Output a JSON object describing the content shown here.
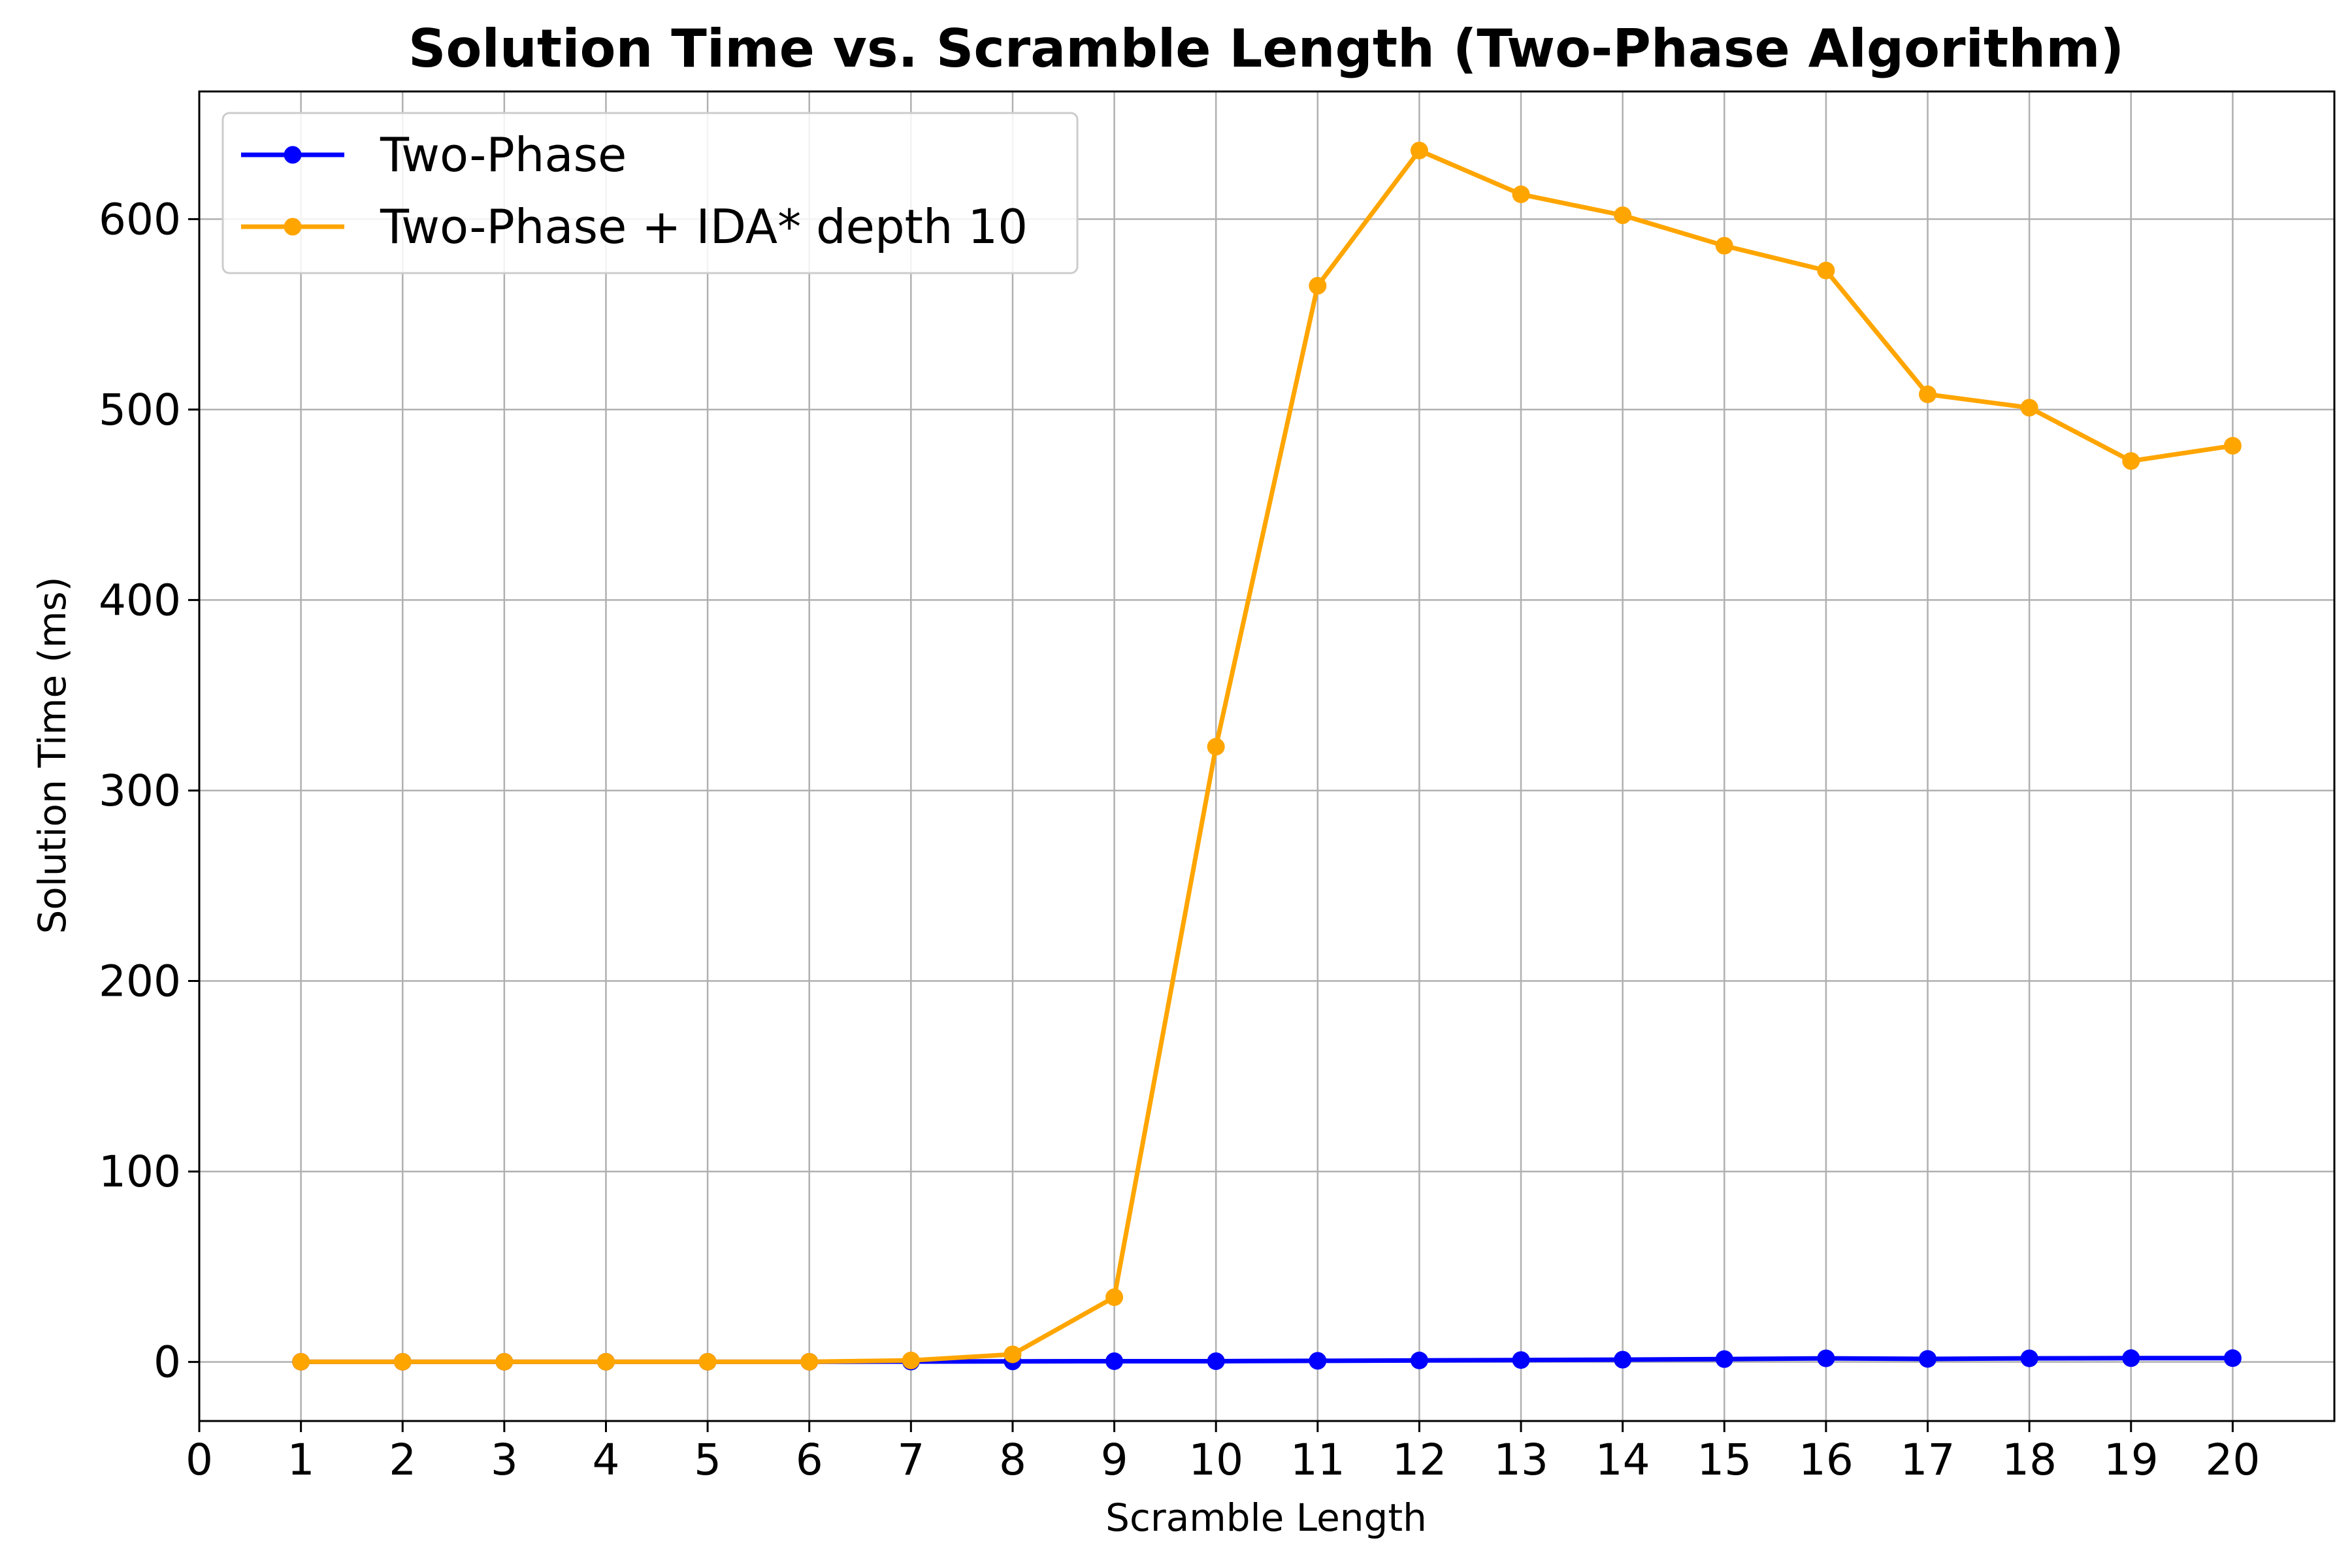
{
  "chart_data": {
    "type": "line",
    "title": "Solution Time vs. Scramble Length (Two-Phase Algorithm)",
    "xlabel": "Scramble Length",
    "ylabel": "Solution Time (ms)",
    "xlim": [
      0,
      21
    ],
    "ylim": [
      -31,
      667
    ],
    "xticks": [
      "0",
      "1",
      "2",
      "3",
      "4",
      "5",
      "6",
      "7",
      "8",
      "9",
      "10",
      "11",
      "12",
      "13",
      "14",
      "15",
      "16",
      "17",
      "18",
      "19",
      "20"
    ],
    "yticks": [
      "0",
      "100",
      "200",
      "300",
      "400",
      "500",
      "600"
    ],
    "grid": true,
    "legend_position": "top-left",
    "x": [
      1,
      2,
      3,
      4,
      5,
      6,
      7,
      8,
      9,
      10,
      11,
      12,
      13,
      14,
      15,
      16,
      17,
      18,
      19,
      20
    ],
    "series": [
      {
        "name": "Two-Phase",
        "color": "#0000ff",
        "marker": "circle",
        "values": [
          0.1,
          0.1,
          0.1,
          0.1,
          0.1,
          0.1,
          0.2,
          0.3,
          0.4,
          0.4,
          0.6,
          0.8,
          1.0,
          1.2,
          1.5,
          1.9,
          1.6,
          1.9,
          2.0,
          2.0
        ]
      },
      {
        "name": "Two-Phase + IDA* depth 10",
        "color": "#ffa500",
        "marker": "circle",
        "values": [
          0.1,
          0.1,
          0.1,
          0.1,
          0.1,
          0.1,
          0.8,
          4,
          34,
          323,
          565,
          636,
          613,
          602,
          586,
          573,
          508,
          501,
          473,
          481
        ]
      }
    ]
  }
}
